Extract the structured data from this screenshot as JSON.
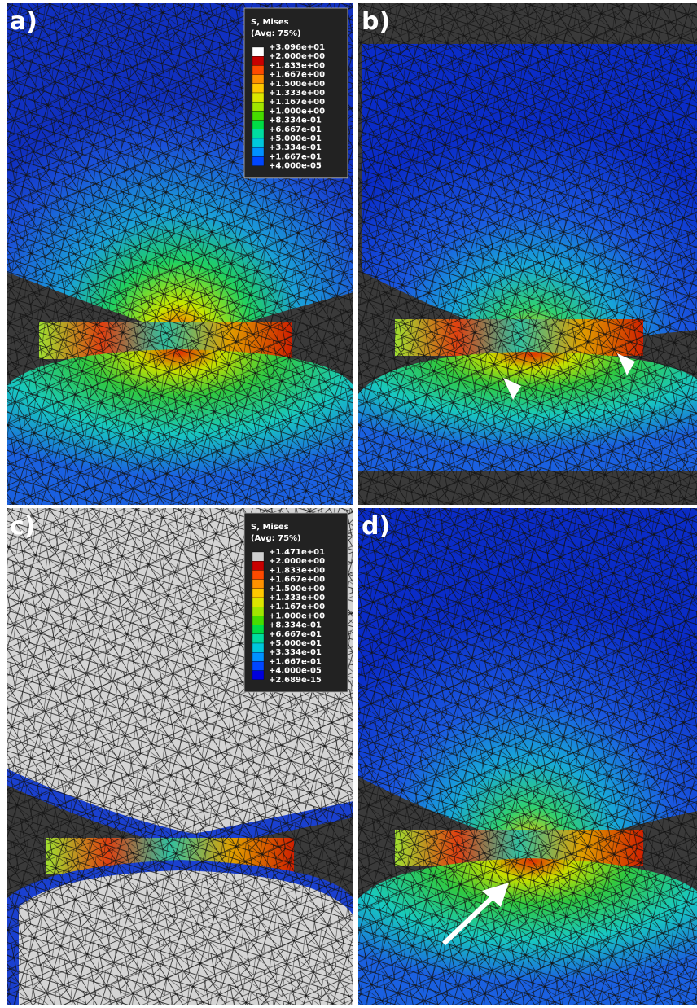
{
  "panels": [
    {
      "label": "a)",
      "legend": {
        "title": "S, Mises",
        "subtitle": "(Avg: 75%)",
        "levels": [
          "+3.096e+01",
          "+2.000e+00",
          "+1.833e+00",
          "+1.667e+00",
          "+1.500e+00",
          "+1.333e+00",
          "+1.167e+00",
          "+1.000e+00",
          "+8.334e-01",
          "+6.667e-01",
          "+5.000e-01",
          "+3.334e-01",
          "+1.667e-01",
          "+4.000e-05"
        ],
        "colors": [
          "#ffffff",
          "#c80000",
          "#ff4a00",
          "#ff9100",
          "#ffc800",
          "#dce600",
          "#a0e600",
          "#46dc00",
          "#00dc46",
          "#00dca0",
          "#00c8dc",
          "#0091ff",
          "#0046ff"
        ]
      }
    },
    {
      "label": "b)"
    },
    {
      "label": "c)",
      "legend": {
        "title": "S, Mises",
        "subtitle": "(Avg: 75%)",
        "levels": [
          "+1.471e+01",
          "+2.000e+00",
          "+1.833e+00",
          "+1.667e+00",
          "+1.500e+00",
          "+1.333e+00",
          "+1.167e+00",
          "+1.000e+00",
          "+8.334e-01",
          "+6.667e-01",
          "+5.000e-01",
          "+3.334e-01",
          "+1.667e-01",
          "+4.000e-05",
          "+2.689e-15"
        ],
        "colors": [
          "#d0d0d0",
          "#c80000",
          "#ff4a00",
          "#ff9100",
          "#ffc800",
          "#dce600",
          "#a0e600",
          "#46dc00",
          "#00dc46",
          "#00dca0",
          "#00c8dc",
          "#0091ff",
          "#0046ff",
          "#0000dc"
        ]
      }
    },
    {
      "label": "d)"
    }
  ]
}
